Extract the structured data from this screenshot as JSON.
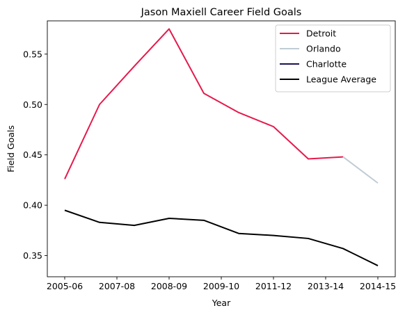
{
  "chart_data": {
    "type": "line",
    "title": "Jason Maxiell Career Field Goals",
    "xlabel": "Year",
    "ylabel": "Field Goals",
    "x_positions": [
      0,
      1,
      2,
      3,
      4,
      5,
      6,
      7,
      8,
      9
    ],
    "x_tick_positions": [
      0,
      1.5,
      3,
      4.5,
      6,
      7.5,
      9
    ],
    "x_tick_labels": [
      "2005-06",
      "2007-08",
      "2008-09",
      "2009-10",
      "2011-12",
      "2013-14",
      "2014-15"
    ],
    "xlim": [
      -0.5,
      9.5
    ],
    "ylim": [
      0.329,
      0.583
    ],
    "y_ticks": [
      0.35,
      0.4,
      0.45,
      0.5,
      0.55
    ],
    "y_tick_labels": [
      "0.35",
      "0.40",
      "0.45",
      "0.50",
      "0.55"
    ],
    "grid": false,
    "legend_position": "top-right",
    "series": [
      {
        "name": "Detroit",
        "color": "#e6194b",
        "width": 2,
        "x": [
          0,
          1,
          2,
          3,
          4,
          5,
          6,
          7,
          8
        ],
        "values": [
          0.426,
          0.5,
          0.538,
          0.575,
          0.511,
          0.492,
          0.478,
          0.446,
          0.448
        ]
      },
      {
        "name": "Orlando",
        "color": "#c0ccd4",
        "width": 2,
        "x": [
          8,
          9
        ],
        "values": [
          0.448,
          0.422
        ]
      },
      {
        "name": "Charlotte",
        "color": "#1a1450",
        "width": 2,
        "x": [],
        "values": []
      },
      {
        "name": "League Average",
        "color": "#000000",
        "width": 2,
        "x": [
          0,
          1,
          2,
          3,
          4,
          5,
          6,
          7,
          8,
          9
        ],
        "values": [
          0.395,
          0.383,
          0.38,
          0.387,
          0.385,
          0.372,
          0.37,
          0.367,
          0.357,
          0.34
        ]
      }
    ]
  }
}
